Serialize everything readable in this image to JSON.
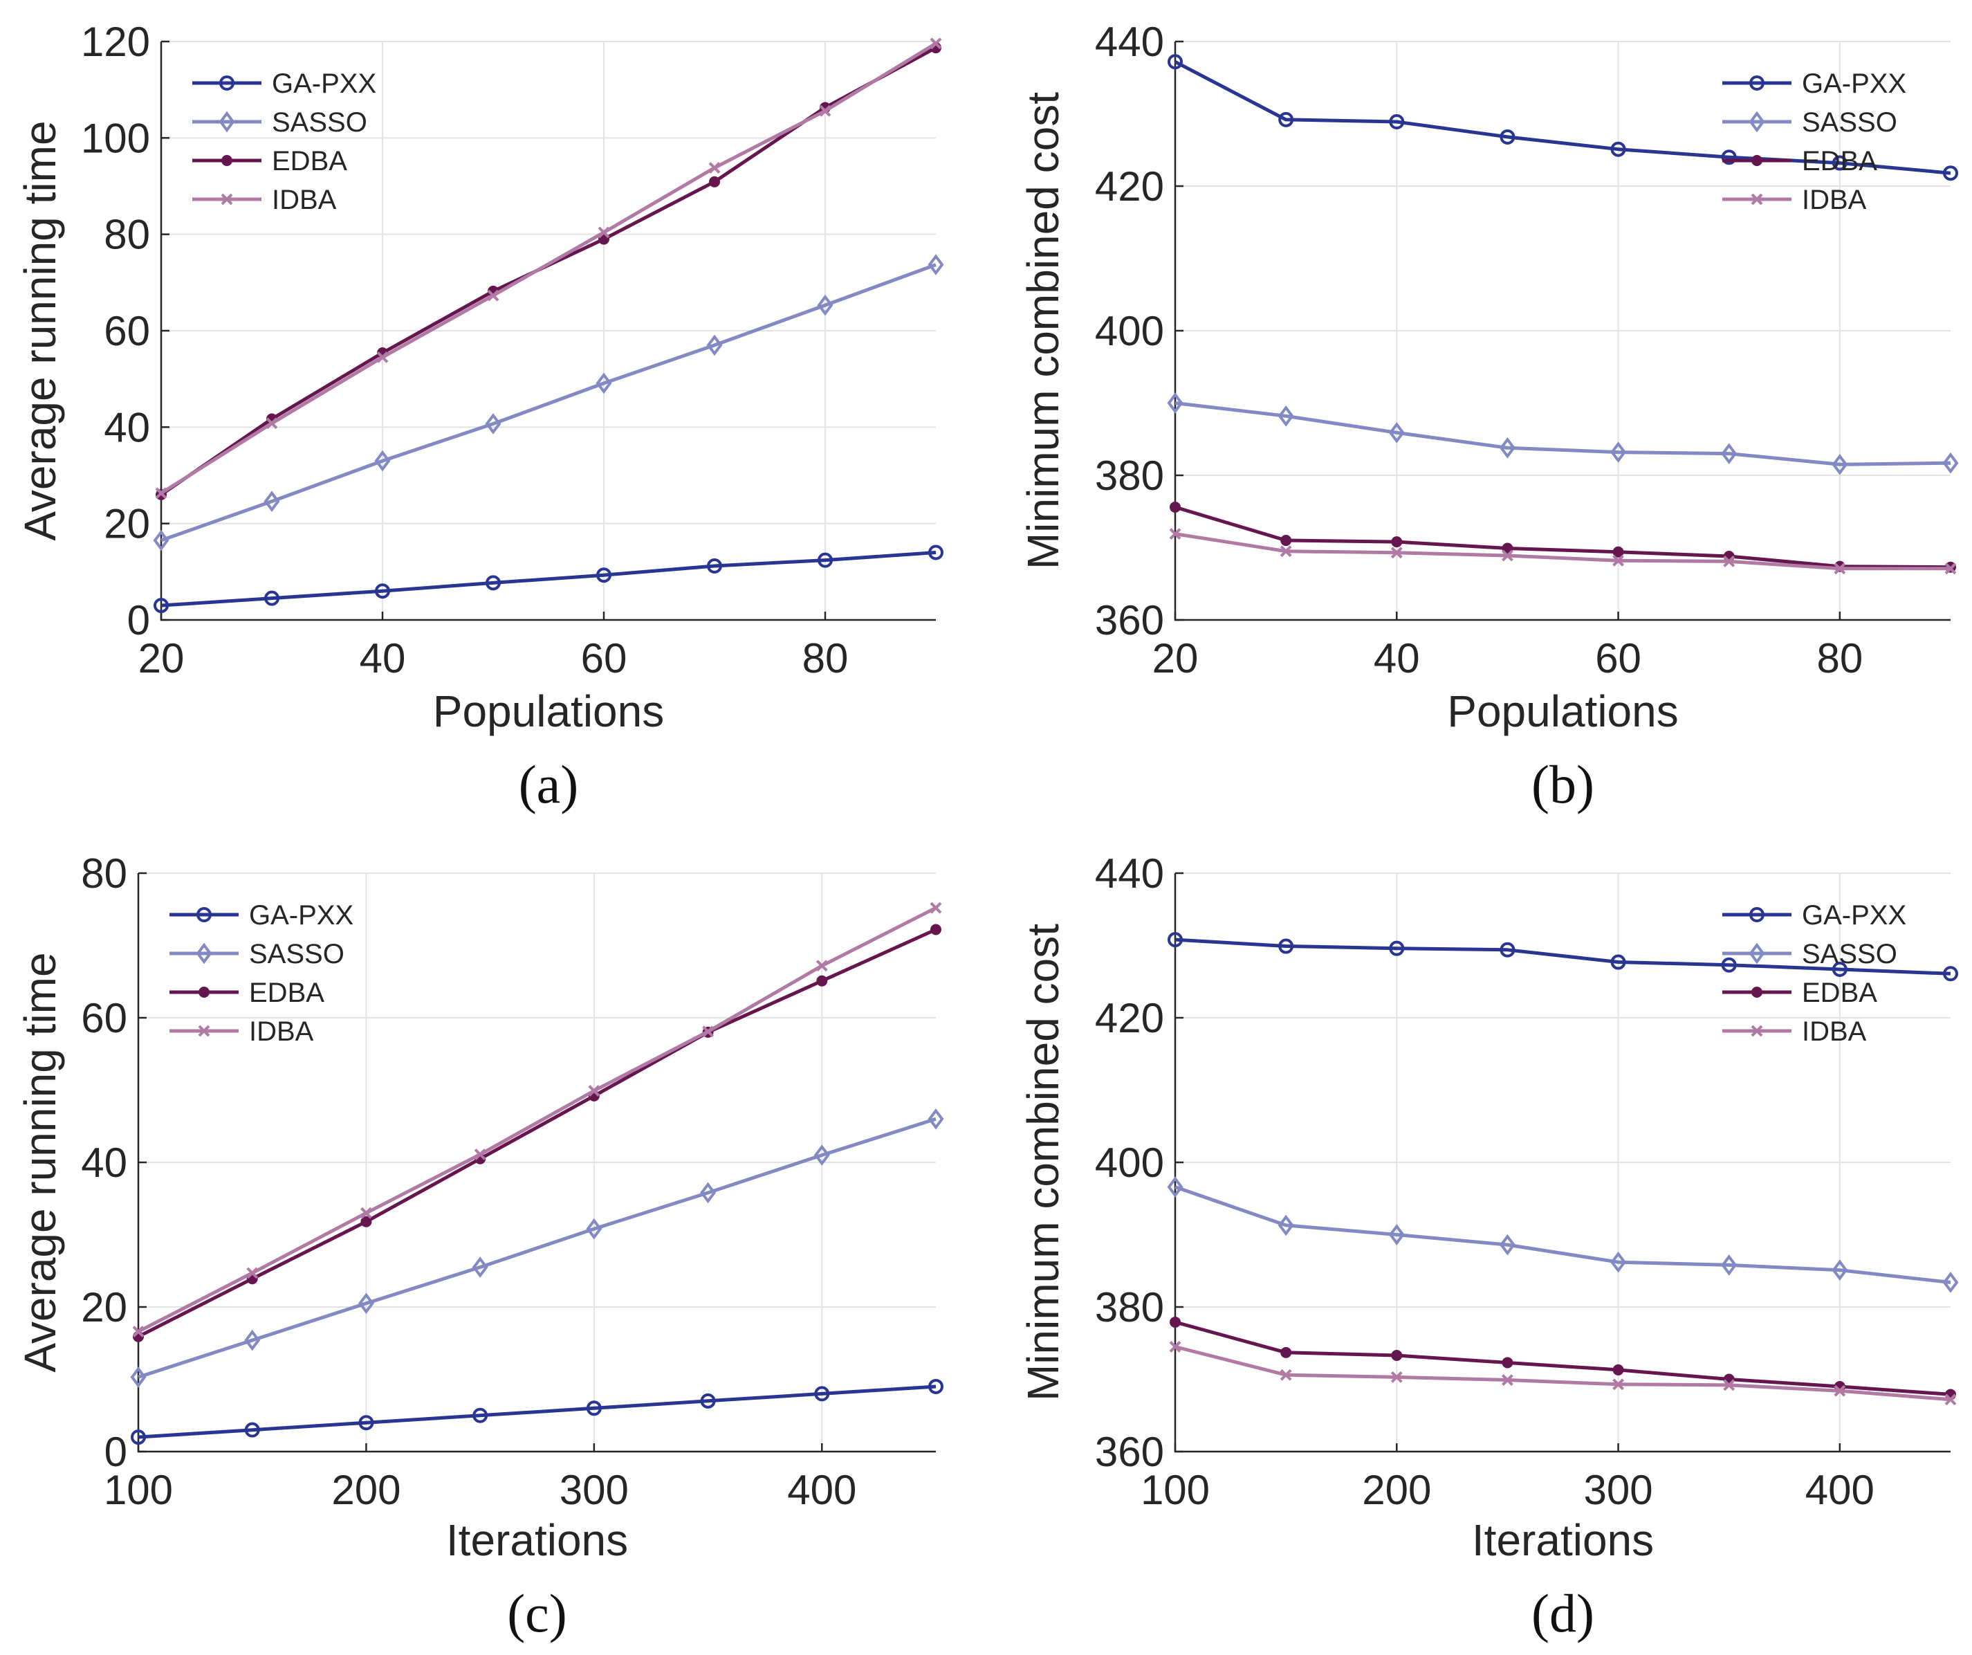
{
  "chart_data": [
    {
      "type": "line",
      "panel_label": "(a)",
      "xlabel": "Populations",
      "ylabel": "Average running time",
      "xlim": [
        20,
        90
      ],
      "ylim": [
        0,
        120
      ],
      "xticks": [
        20,
        40,
        60,
        80
      ],
      "yticks": [
        0,
        20,
        40,
        60,
        80,
        100,
        120
      ],
      "grid": true,
      "legend_position": "top-left",
      "x": [
        20,
        30,
        40,
        50,
        60,
        70,
        80,
        90
      ],
      "series": [
        {
          "name": "GA-PXX",
          "color": "#283592",
          "marker": "circle",
          "values": [
            3,
            4.5,
            6,
            7.7,
            9.3,
            11.2,
            12.4,
            14
          ]
        },
        {
          "name": "SASSO",
          "color": "#8289c3",
          "marker": "diamond",
          "values": [
            16.5,
            24.6,
            33,
            40.7,
            49.1,
            57,
            65.3,
            73.7
          ]
        },
        {
          "name": "EDBA",
          "color": "#65164f",
          "marker": "dot",
          "values": [
            26,
            41.7,
            55.4,
            68.2,
            79,
            90.9,
            106.3,
            118.7
          ]
        },
        {
          "name": "IDBA",
          "color": "#b07aa5",
          "marker": "cross",
          "values": [
            26.3,
            40.8,
            54.5,
            67.3,
            80.4,
            93.8,
            105.6,
            119.6
          ]
        }
      ]
    },
    {
      "type": "line",
      "panel_label": "(b)",
      "xlabel": "Populations",
      "ylabel": "Minimum combined cost",
      "xlim": [
        20,
        90
      ],
      "ylim": [
        360,
        440
      ],
      "xticks": [
        20,
        40,
        60,
        80
      ],
      "yticks": [
        360,
        380,
        400,
        420,
        440
      ],
      "grid": true,
      "legend_position": "top-right",
      "x": [
        20,
        30,
        40,
        50,
        60,
        70,
        80,
        90
      ],
      "series": [
        {
          "name": "GA-PXX",
          "color": "#283592",
          "marker": "circle",
          "values": [
            437.2,
            429.2,
            428.9,
            426.8,
            425.1,
            424,
            423.2,
            421.8
          ]
        },
        {
          "name": "SASSO",
          "color": "#8289c3",
          "marker": "diamond",
          "values": [
            390,
            388.2,
            385.9,
            383.8,
            383.2,
            383,
            381.5,
            381.7
          ]
        },
        {
          "name": "EDBA",
          "color": "#65164f",
          "marker": "dot",
          "values": [
            375.6,
            371,
            370.8,
            369.9,
            369.4,
            368.8,
            367.4,
            367.3
          ]
        },
        {
          "name": "IDBA",
          "color": "#b07aa5",
          "marker": "cross",
          "values": [
            371.9,
            369.5,
            369.3,
            368.9,
            368.2,
            368.1,
            367.1,
            367.1
          ]
        }
      ]
    },
    {
      "type": "line",
      "panel_label": "(c)",
      "xlabel": "Iterations",
      "ylabel": "Average running time",
      "xlim": [
        100,
        450
      ],
      "ylim": [
        0,
        80
      ],
      "xticks": [
        100,
        200,
        300,
        400
      ],
      "yticks": [
        0,
        20,
        40,
        60,
        80
      ],
      "grid": true,
      "legend_position": "top-left",
      "x": [
        100,
        150,
        200,
        250,
        300,
        350,
        400,
        450
      ],
      "series": [
        {
          "name": "GA-PXX",
          "color": "#283592",
          "marker": "circle",
          "values": [
            2,
            3,
            4,
            5,
            6,
            7,
            8,
            9
          ]
        },
        {
          "name": "SASSO",
          "color": "#8289c3",
          "marker": "diamond",
          "values": [
            10.3,
            15.4,
            20.5,
            25.5,
            30.8,
            35.8,
            41,
            46
          ]
        },
        {
          "name": "EDBA",
          "color": "#65164f",
          "marker": "dot",
          "values": [
            15.9,
            23.9,
            31.8,
            40.5,
            49.2,
            58,
            65.1,
            72.2
          ]
        },
        {
          "name": "IDBA",
          "color": "#b07aa5",
          "marker": "cross",
          "values": [
            16.6,
            24.7,
            33,
            41.1,
            49.9,
            58.1,
            67.2,
            75.2
          ]
        }
      ]
    },
    {
      "type": "line",
      "panel_label": "(d)",
      "xlabel": "Iterations",
      "ylabel": "Minimum combined cost",
      "xlim": [
        100,
        450
      ],
      "ylim": [
        360,
        440
      ],
      "xticks": [
        100,
        200,
        300,
        400
      ],
      "yticks": [
        360,
        380,
        400,
        420,
        440
      ],
      "grid": true,
      "legend_position": "top-right",
      "x": [
        100,
        150,
        200,
        250,
        300,
        350,
        400,
        450
      ],
      "series": [
        {
          "name": "GA-PXX",
          "color": "#283592",
          "marker": "circle",
          "values": [
            430.8,
            429.9,
            429.6,
            429.4,
            427.7,
            427.3,
            426.7,
            426.1
          ]
        },
        {
          "name": "SASSO",
          "color": "#8289c3",
          "marker": "diamond",
          "values": [
            396.6,
            391.3,
            390,
            388.6,
            386.2,
            385.8,
            385.1,
            383.4
          ]
        },
        {
          "name": "EDBA",
          "color": "#65164f",
          "marker": "dot",
          "values": [
            377.9,
            373.7,
            373.3,
            372.3,
            371.3,
            370,
            369,
            367.9
          ]
        },
        {
          "name": "IDBA",
          "color": "#b07aa5",
          "marker": "cross",
          "values": [
            374.5,
            370.6,
            370.3,
            369.9,
            369.3,
            369.2,
            368.4,
            367.2
          ]
        }
      ]
    }
  ]
}
